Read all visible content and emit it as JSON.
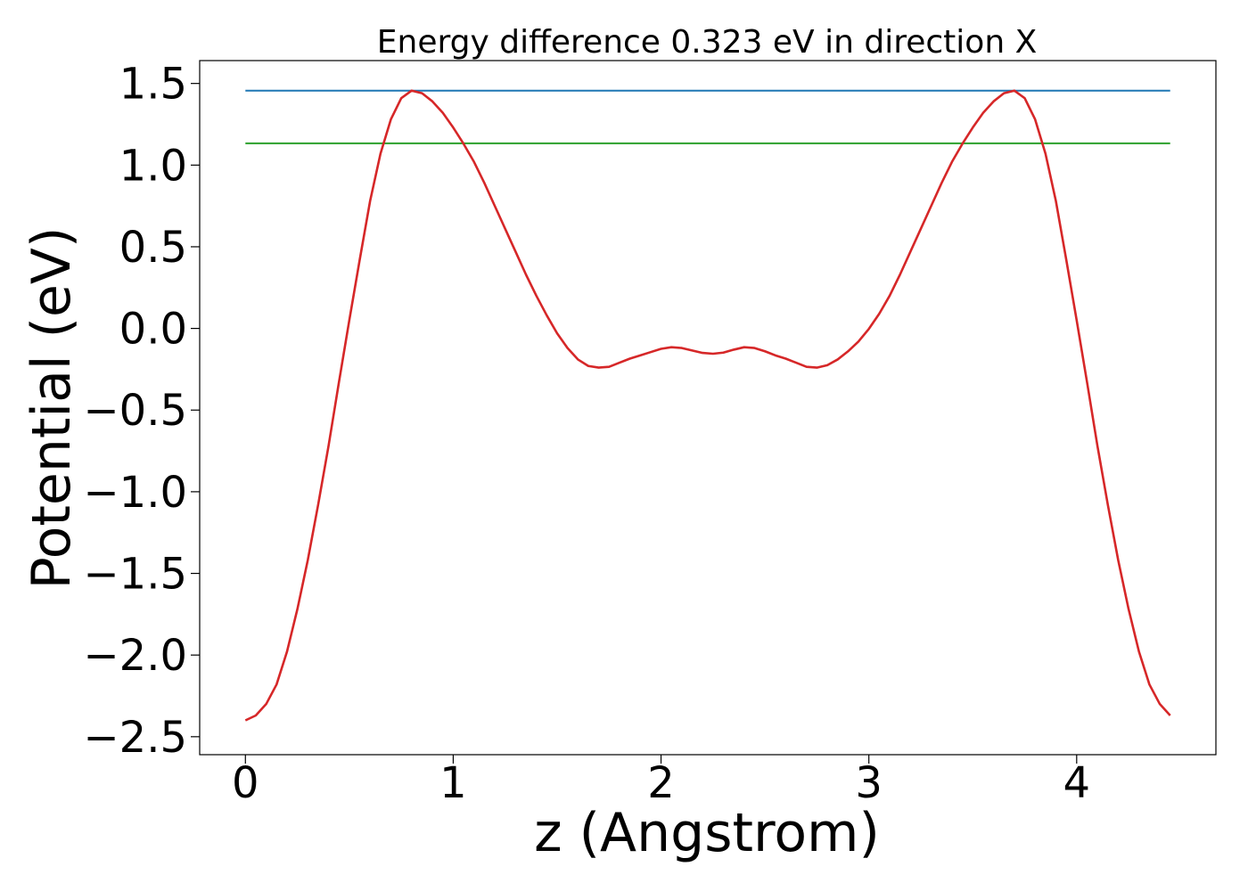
{
  "chart_data": {
    "type": "line",
    "title": "Energy difference 0.323 eV in direction X",
    "xlabel": "z (Angstrom)",
    "ylabel": "Potential (eV)",
    "xlim": [
      -0.22,
      4.67
    ],
    "ylim": [
      -2.61,
      1.64
    ],
    "xticks": [
      0,
      1,
      2,
      3,
      4
    ],
    "xtick_labels": [
      "0",
      "1",
      "2",
      "3",
      "4"
    ],
    "yticks": [
      1.5,
      1.0,
      0.5,
      0.0,
      -0.5,
      -1.0,
      -1.5,
      -2.0,
      -2.5
    ],
    "ytick_labels": [
      "1.5",
      "1.0",
      "0.5",
      "0.0",
      "−0.5",
      "−1.0",
      "−1.5",
      "−2.0",
      "−2.5"
    ],
    "grid": false,
    "series": [
      {
        "color": "#1f77b4",
        "x": [
          0.0,
          4.45
        ],
        "y": [
          1.456,
          1.456
        ]
      },
      {
        "color": "#2ca02c",
        "x": [
          0.0,
          4.45
        ],
        "y": [
          1.133,
          1.133
        ]
      },
      {
        "color": "#d62728",
        "x": [
          0.0,
          0.05,
          0.1,
          0.15,
          0.2,
          0.25,
          0.3,
          0.35,
          0.4,
          0.45,
          0.5,
          0.55,
          0.6,
          0.65,
          0.7,
          0.75,
          0.8,
          0.85,
          0.9,
          0.95,
          1.0,
          1.05,
          1.1,
          1.15,
          1.2,
          1.25,
          1.3,
          1.35,
          1.4,
          1.45,
          1.5,
          1.55,
          1.6,
          1.65,
          1.7,
          1.75,
          1.8,
          1.85,
          1.9,
          1.95,
          2.0,
          2.05,
          2.1,
          2.15,
          2.2,
          2.25,
          2.3,
          2.35,
          2.4,
          2.45,
          2.5,
          2.55,
          2.6,
          2.65,
          2.7,
          2.75,
          2.8,
          2.85,
          2.9,
          2.95,
          3.0,
          3.05,
          3.1,
          3.15,
          3.2,
          3.25,
          3.3,
          3.35,
          3.4,
          3.45,
          3.5,
          3.55,
          3.6,
          3.65,
          3.7,
          3.75,
          3.8,
          3.85,
          3.9,
          3.95,
          4.0,
          4.05,
          4.1,
          4.15,
          4.2,
          4.25,
          4.3,
          4.35,
          4.4,
          4.45
        ],
        "y": [
          -2.4,
          -2.37,
          -2.3,
          -2.18,
          -1.98,
          -1.72,
          -1.42,
          -1.08,
          -0.72,
          -0.33,
          0.05,
          0.42,
          0.78,
          1.07,
          1.28,
          1.41,
          1.456,
          1.44,
          1.39,
          1.32,
          1.23,
          1.13,
          1.02,
          0.89,
          0.75,
          0.61,
          0.47,
          0.33,
          0.2,
          0.08,
          -0.03,
          -0.12,
          -0.19,
          -0.23,
          -0.24,
          -0.235,
          -0.21,
          -0.185,
          -0.165,
          -0.145,
          -0.125,
          -0.115,
          -0.12,
          -0.135,
          -0.15,
          -0.155,
          -0.148,
          -0.13,
          -0.115,
          -0.12,
          -0.14,
          -0.165,
          -0.185,
          -0.21,
          -0.235,
          -0.24,
          -0.225,
          -0.19,
          -0.14,
          -0.08,
          -0.003,
          0.09,
          0.2,
          0.33,
          0.47,
          0.61,
          0.75,
          0.89,
          1.02,
          1.13,
          1.23,
          1.32,
          1.39,
          1.44,
          1.456,
          1.41,
          1.28,
          1.07,
          0.78,
          0.42,
          0.05,
          -0.33,
          -0.72,
          -1.08,
          -1.42,
          -1.72,
          -1.98,
          -2.18,
          -2.3,
          -2.37
        ]
      }
    ]
  }
}
